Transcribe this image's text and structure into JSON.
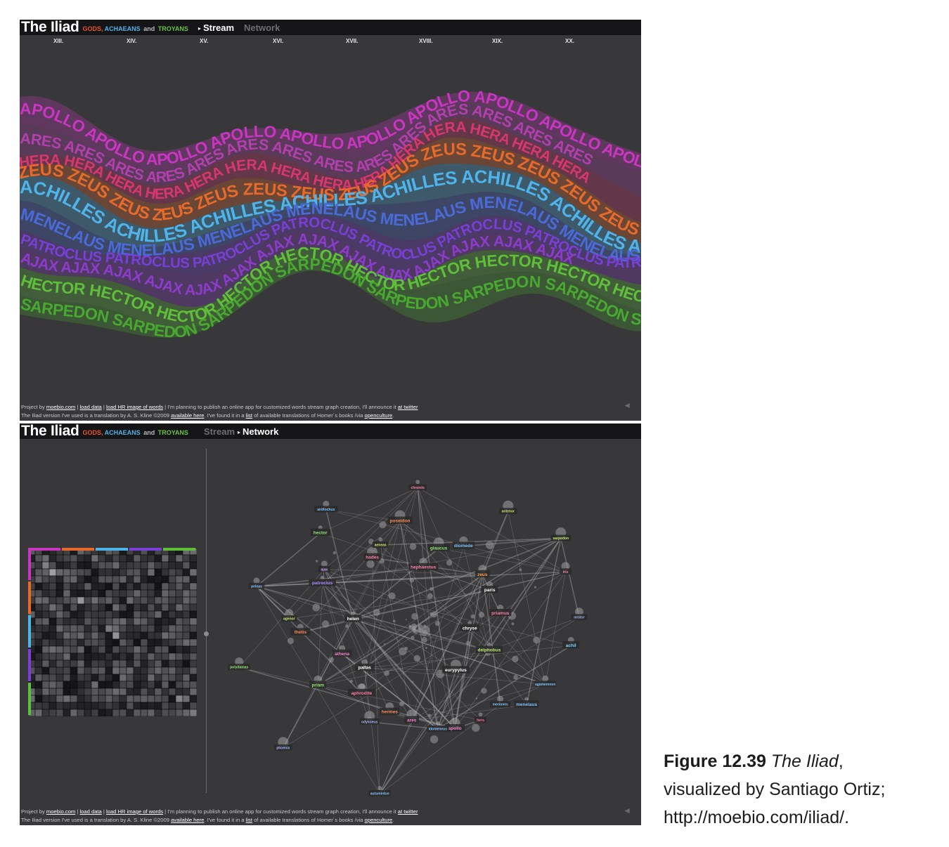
{
  "stream_panel": {
    "title": "The Iliad",
    "subtitle": {
      "gods": "GODS,",
      "achaeans": "ACHAEANS",
      "and": "and",
      "troyans": "TROYANS"
    },
    "tabs": {
      "stream": "Stream",
      "network": "Network"
    },
    "active_tab": "Stream",
    "books": [
      "XIII.",
      "XIV.",
      "XV.",
      "XVI.",
      "XVII.",
      "XVIII.",
      "XIX.",
      "XX."
    ],
    "bands": [
      {
        "name": "APOLLO",
        "color": "#c936c2"
      },
      {
        "name": "ARES",
        "color": "#b33fae"
      },
      {
        "name": "HERA",
        "color": "#d8366e"
      },
      {
        "name": "ZEUS",
        "color": "#e86a2a"
      },
      {
        "name": "ACHILLES",
        "color": "#4fb4ea"
      },
      {
        "name": "MENELAUS",
        "color": "#4a6ad8"
      },
      {
        "name": "PATROCLUS",
        "color": "#7a3fd6"
      },
      {
        "name": "AJAX",
        "color": "#8c3ccc"
      },
      {
        "name": "HECTOR",
        "color": "#5fbf3a"
      },
      {
        "name": "SARPEDON",
        "color": "#48a830"
      }
    ],
    "footer": {
      "line1": {
        "project_by": "Project by",
        "moebio": "moebio.com",
        "sep1": "|",
        "load_data": "load data",
        "sep2": "|",
        "load_hr": "load HR image of words",
        "sep3": "|",
        "plan": "I'm planning to publish an online app for customized words stream graph creation, I'll announce it",
        "at_twitter": "at twitter"
      },
      "line2": {
        "version": "The Iliad version I've used is a translation by A. S. Kline ©2009",
        "available": "available here",
        "found": ". I've found it in a",
        "list": "list",
        "of": "of available translations of Homer´s books /via",
        "openculture": "openculture",
        "end": "."
      }
    },
    "nav_back": "◄"
  },
  "network_panel": {
    "title": "The Iliad",
    "subtitle": {
      "gods": "GODS,",
      "achaeans": "ACHAEANS",
      "and": "and",
      "troyans": "TROYANS"
    },
    "tabs": {
      "stream": "Stream",
      "network": "Network"
    },
    "active_tab": "Network",
    "matrix_colors": [
      "#c936c2",
      "#e86a2a",
      "#4fb4ea",
      "#7a3fd6",
      "#5fbf3a"
    ],
    "nodes": [
      {
        "label": "chryse",
        "color": "#ffffff"
      },
      {
        "label": "pallas",
        "color": "#ffffff"
      },
      {
        "label": "hephaestus",
        "color": "#ff7fa8"
      },
      {
        "label": "eurypylus",
        "color": "#ffffff"
      },
      {
        "label": "helen",
        "color": "#ffffff"
      },
      {
        "label": "paris",
        "color": "#ffffff"
      },
      {
        "label": "hermes",
        "color": "#ff8a5a"
      },
      {
        "label": "hades",
        "color": "#ff7fa8"
      },
      {
        "label": "deiphobus",
        "color": "#c8e86a"
      },
      {
        "label": "athena",
        "color": "#ff7fd0"
      },
      {
        "label": "diomede",
        "color": "#7fc4ff"
      },
      {
        "label": "apollo",
        "color": "#ff7fd0"
      },
      {
        "label": "patroclus",
        "color": "#a88cff"
      },
      {
        "label": "priamus",
        "color": "#ff7fa8"
      },
      {
        "label": "aphrodite",
        "color": "#ff7fa8"
      },
      {
        "label": "poseidon",
        "color": "#ff8a5a"
      },
      {
        "label": "menelaus",
        "color": "#7fc4ff"
      },
      {
        "label": "thetis",
        "color": "#ff8a5a"
      },
      {
        "label": "zeus",
        "color": "#ff9a4a"
      },
      {
        "label": "ares",
        "color": "#ff7fd0"
      },
      {
        "label": "hector",
        "color": "#8fe870"
      },
      {
        "label": "achil",
        "color": "#7fd8ff"
      },
      {
        "label": "priam",
        "color": "#8fe870"
      },
      {
        "label": "glaucus",
        "color": "#8fe870"
      },
      {
        "label": "hera",
        "color": "#ff6a8a"
      },
      {
        "label": "peleus",
        "color": "#7fc4ff"
      },
      {
        "label": "iris",
        "color": "#ff7fa8"
      },
      {
        "label": "odysseus",
        "color": "#a8b4ff"
      },
      {
        "label": "aeneas",
        "color": "#c8e86a"
      },
      {
        "label": "agamemnon",
        "color": "#7fc4ff"
      },
      {
        "label": "polydamas",
        "color": "#8fe870"
      },
      {
        "label": "antenor",
        "color": "#c8e86a"
      },
      {
        "label": "idomeneus",
        "color": "#7fc4ff"
      },
      {
        "label": "ajax",
        "color": "#c8a8ff"
      },
      {
        "label": "nestor",
        "color": "#a8b4ff"
      },
      {
        "label": "phoenix",
        "color": "#a8b4ff"
      },
      {
        "label": "chromis",
        "color": "#ff7fa8"
      },
      {
        "label": "meriones",
        "color": "#7fc4ff"
      },
      {
        "label": "agenor",
        "color": "#c8e86a"
      },
      {
        "label": "sarpedon",
        "color": "#c8e86a"
      },
      {
        "label": "automedon",
        "color": "#7fc4ff"
      },
      {
        "label": "antilochus",
        "color": "#7fc4ff"
      }
    ],
    "footer": {
      "line1": {
        "project_by": "Project by",
        "moebio": "moebio.com",
        "sep1": "|",
        "load_data": "load data",
        "sep2": "|",
        "load_hr": "load HR image of words",
        "sep3": "|",
        "plan": "I'm planning to publish an online app for customized words stream graph creation, I'll announce it",
        "at_twitter": "at twitter"
      },
      "line2": {
        "version": "The Iliad version I've used is a translation by A. S. Kline ©2009",
        "available": "available here",
        "found": ". I've found it in a",
        "list": "list",
        "of": "of available translations of Homer´s books /via",
        "openculture": "openculture",
        "end": "."
      }
    },
    "nav_back": "◄"
  },
  "caption": {
    "figure": "Figure 12.39",
    "title": "The Iliad",
    "comma": ",",
    "rest_line1": "visualized by Santiago Ortiz;",
    "url": "http://moebio.com/iliad/."
  }
}
